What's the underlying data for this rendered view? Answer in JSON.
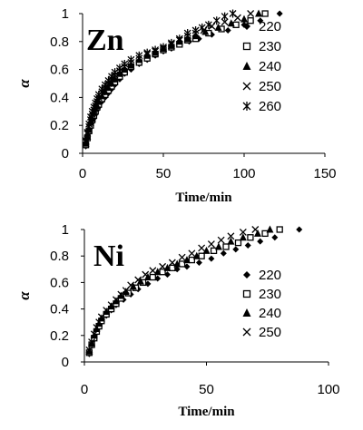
{
  "chart_data": [
    {
      "type": "scatter",
      "panel_label": "Zn",
      "xlabel": "Time/min",
      "ylabel": "α",
      "xlim": [
        0,
        150
      ],
      "ylim": [
        0,
        1
      ],
      "x_ticks": [
        "0",
        "50",
        "100",
        "150"
      ],
      "y_ticks": [
        "0",
        "0.2",
        "0.4",
        "0.6",
        "0.8",
        "1"
      ],
      "grid": false,
      "legend_position": "right",
      "series": [
        {
          "name": "220",
          "marker": "diamond",
          "color": "#000000",
          "x": [
            2,
            3,
            4,
            5,
            6,
            7,
            8,
            9,
            10,
            12,
            14,
            16,
            18,
            20,
            23,
            26,
            30,
            35,
            40,
            45,
            50,
            55,
            60,
            66,
            72,
            80,
            90,
            100,
            110,
            122
          ],
          "y": [
            0.05,
            0.1,
            0.15,
            0.19,
            0.22,
            0.25,
            0.28,
            0.31,
            0.33,
            0.37,
            0.4,
            0.43,
            0.46,
            0.49,
            0.53,
            0.57,
            0.6,
            0.64,
            0.67,
            0.7,
            0.73,
            0.75,
            0.78,
            0.8,
            0.82,
            0.85,
            0.88,
            0.92,
            0.95,
            1.0
          ]
        },
        {
          "name": "230",
          "marker": "square-open",
          "color": "#000000",
          "x": [
            2,
            3,
            4,
            5,
            6,
            7,
            8,
            9,
            10,
            12,
            14,
            16,
            18,
            20,
            23,
            26,
            30,
            35,
            40,
            45,
            50,
            55,
            60,
            65,
            70,
            78,
            86,
            95,
            104,
            113
          ],
          "y": [
            0.06,
            0.11,
            0.16,
            0.2,
            0.24,
            0.27,
            0.3,
            0.33,
            0.35,
            0.39,
            0.42,
            0.45,
            0.48,
            0.51,
            0.55,
            0.58,
            0.62,
            0.65,
            0.68,
            0.71,
            0.74,
            0.76,
            0.78,
            0.81,
            0.82,
            0.86,
            0.89,
            0.92,
            0.95,
            1.0
          ]
        },
        {
          "name": "240",
          "marker": "triangle",
          "color": "#000000",
          "x": [
            2,
            3,
            4,
            5,
            6,
            7,
            8,
            9,
            10,
            12,
            14,
            16,
            18,
            20,
            23,
            26,
            30,
            35,
            40,
            45,
            50,
            55,
            60,
            65,
            70,
            76,
            84,
            92,
            100,
            109
          ],
          "y": [
            0.07,
            0.12,
            0.17,
            0.22,
            0.25,
            0.29,
            0.32,
            0.34,
            0.37,
            0.41,
            0.44,
            0.47,
            0.5,
            0.53,
            0.57,
            0.6,
            0.63,
            0.67,
            0.7,
            0.72,
            0.75,
            0.77,
            0.8,
            0.82,
            0.84,
            0.87,
            0.9,
            0.93,
            0.96,
            1.0
          ]
        },
        {
          "name": "250",
          "marker": "x",
          "color": "#000000",
          "x": [
            2,
            3,
            4,
            5,
            6,
            7,
            8,
            9,
            10,
            12,
            14,
            16,
            18,
            20,
            23,
            26,
            30,
            35,
            40,
            45,
            50,
            55,
            60,
            65,
            70,
            75,
            80,
            88,
            96,
            104
          ],
          "y": [
            0.08,
            0.14,
            0.19,
            0.24,
            0.28,
            0.31,
            0.34,
            0.37,
            0.4,
            0.44,
            0.47,
            0.5,
            0.53,
            0.56,
            0.59,
            0.62,
            0.65,
            0.68,
            0.71,
            0.73,
            0.75,
            0.78,
            0.81,
            0.84,
            0.86,
            0.88,
            0.91,
            0.94,
            0.97,
            1.0
          ]
        },
        {
          "name": "260",
          "marker": "asterisk",
          "color": "#000000",
          "x": [
            2,
            3,
            4,
            5,
            6,
            7,
            8,
            9,
            10,
            12,
            14,
            16,
            18,
            20,
            23,
            26,
            30,
            35,
            40,
            45,
            50,
            55,
            60,
            65,
            70,
            74,
            78,
            83,
            88,
            93
          ],
          "y": [
            0.09,
            0.15,
            0.21,
            0.26,
            0.3,
            0.33,
            0.36,
            0.39,
            0.42,
            0.46,
            0.49,
            0.52,
            0.55,
            0.58,
            0.61,
            0.64,
            0.67,
            0.7,
            0.72,
            0.74,
            0.76,
            0.79,
            0.82,
            0.86,
            0.88,
            0.9,
            0.92,
            0.95,
            0.98,
            1.0
          ]
        }
      ]
    },
    {
      "type": "scatter",
      "panel_label": "Ni",
      "xlabel": "Time/min",
      "ylabel": "α",
      "xlim": [
        0,
        100
      ],
      "ylim": [
        0,
        1
      ],
      "x_ticks": [
        "0",
        "50",
        "100"
      ],
      "y_ticks": [
        "0",
        "0.2",
        "0.4",
        "0.6",
        "0.8",
        "1"
      ],
      "grid": false,
      "legend_position": "right",
      "series": [
        {
          "name": "220",
          "marker": "diamond",
          "color": "#000000",
          "x": [
            2,
            3,
            4,
            5,
            6,
            7,
            9,
            11,
            13,
            16,
            19,
            22,
            26,
            30,
            34,
            38,
            42,
            47,
            52,
            57,
            62,
            67,
            72,
            78,
            88
          ],
          "y": [
            0.06,
            0.12,
            0.17,
            0.22,
            0.26,
            0.3,
            0.35,
            0.39,
            0.43,
            0.47,
            0.51,
            0.55,
            0.59,
            0.63,
            0.66,
            0.7,
            0.72,
            0.75,
            0.78,
            0.82,
            0.85,
            0.88,
            0.91,
            0.94,
            1.0
          ]
        },
        {
          "name": "230",
          "marker": "square-open",
          "color": "#000000",
          "x": [
            2,
            3,
            4,
            5,
            6,
            7,
            9,
            11,
            13,
            15,
            18,
            21,
            24,
            28,
            32,
            36,
            40,
            44,
            48,
            53,
            58,
            63,
            68,
            74,
            80
          ],
          "y": [
            0.07,
            0.13,
            0.18,
            0.23,
            0.27,
            0.31,
            0.36,
            0.4,
            0.44,
            0.48,
            0.52,
            0.56,
            0.6,
            0.64,
            0.68,
            0.71,
            0.74,
            0.77,
            0.8,
            0.84,
            0.87,
            0.9,
            0.94,
            0.97,
            1.0
          ]
        },
        {
          "name": "240",
          "marker": "triangle",
          "color": "#000000",
          "x": [
            2,
            3,
            4,
            5,
            6,
            7,
            9,
            11,
            13,
            15,
            17,
            20,
            23,
            26,
            30,
            34,
            38,
            42,
            46,
            50,
            55,
            60,
            65,
            71,
            76
          ],
          "y": [
            0.08,
            0.14,
            0.2,
            0.25,
            0.29,
            0.33,
            0.38,
            0.42,
            0.46,
            0.5,
            0.53,
            0.57,
            0.61,
            0.64,
            0.68,
            0.71,
            0.74,
            0.77,
            0.8,
            0.84,
            0.87,
            0.91,
            0.94,
            0.97,
            1.0
          ]
        },
        {
          "name": "250",
          "marker": "x",
          "color": "#000000",
          "x": [
            2,
            3,
            4,
            5,
            6,
            7,
            9,
            11,
            13,
            15,
            17,
            19,
            22,
            25,
            28,
            32,
            36,
            40,
            44,
            48,
            52,
            56,
            60,
            65,
            70
          ],
          "y": [
            0.09,
            0.15,
            0.21,
            0.26,
            0.3,
            0.34,
            0.39,
            0.43,
            0.47,
            0.51,
            0.54,
            0.58,
            0.62,
            0.66,
            0.69,
            0.72,
            0.75,
            0.79,
            0.82,
            0.86,
            0.89,
            0.92,
            0.95,
            0.98,
            1.0
          ]
        }
      ]
    }
  ]
}
